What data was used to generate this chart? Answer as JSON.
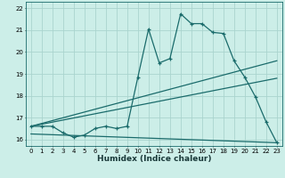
{
  "xlabel": "Humidex (Indice chaleur)",
  "bg_color": "#cceee8",
  "grid_color": "#aad4ce",
  "line_color": "#1a6b6b",
  "xlim": [
    -0.5,
    23.5
  ],
  "ylim": [
    15.7,
    22.3
  ],
  "xticks": [
    0,
    1,
    2,
    3,
    4,
    5,
    6,
    7,
    8,
    9,
    10,
    11,
    12,
    13,
    14,
    15,
    16,
    17,
    18,
    19,
    20,
    21,
    22,
    23
  ],
  "yticks": [
    16,
    17,
    18,
    19,
    20,
    21,
    22
  ],
  "main_x": [
    0,
    1,
    2,
    3,
    4,
    5,
    6,
    7,
    8,
    9,
    10,
    11,
    12,
    13,
    14,
    15,
    16,
    17,
    18,
    19,
    20,
    21,
    22,
    23
  ],
  "main_y": [
    16.6,
    16.6,
    16.6,
    16.3,
    16.1,
    16.2,
    16.5,
    16.6,
    16.5,
    16.6,
    18.85,
    21.05,
    19.5,
    19.7,
    21.75,
    21.3,
    21.3,
    20.9,
    20.85,
    19.6,
    18.85,
    17.95,
    16.8,
    15.85
  ],
  "line2_x": [
    0,
    23
  ],
  "line2_y": [
    16.6,
    19.6
  ],
  "line3_x": [
    0,
    23
  ],
  "line3_y": [
    16.6,
    18.8
  ],
  "flat_line_x": [
    0,
    23
  ],
  "flat_line_y": [
    16.25,
    15.85
  ]
}
